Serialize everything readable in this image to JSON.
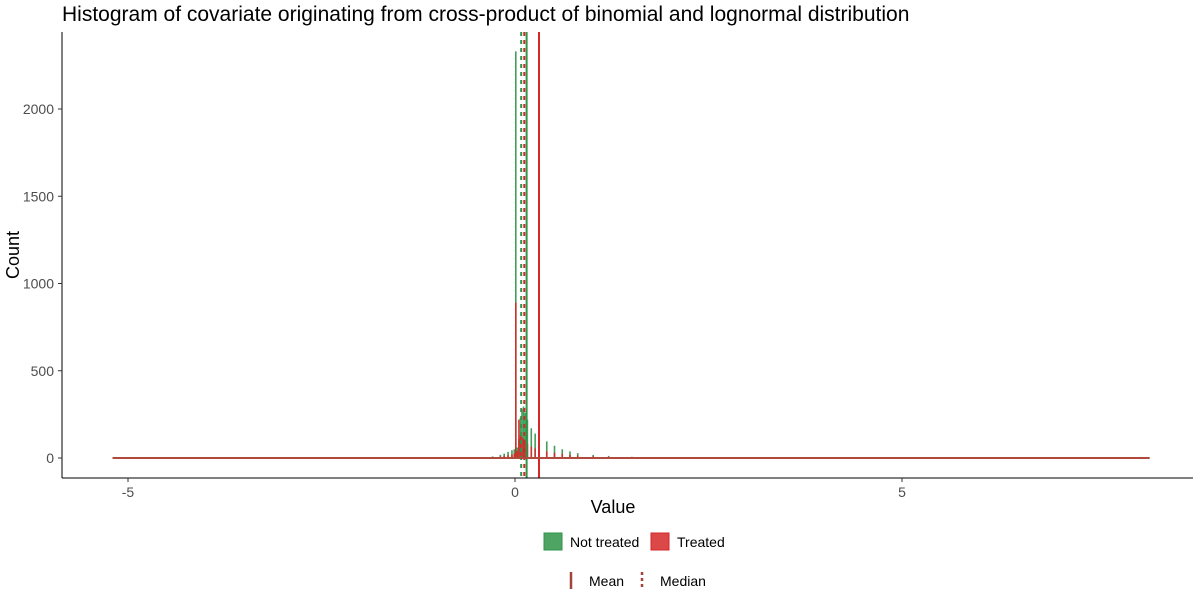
{
  "chart_data": {
    "type": "histogram",
    "title": "Histogram of covariate originating from cross-product of binomial and lognormal distribution",
    "xlabel": "Value",
    "ylabel": "Count",
    "xlim": [
      -5.2,
      8.2
    ],
    "ylim": [
      0,
      2400
    ],
    "x_ticks": [
      -5,
      0,
      5
    ],
    "y_ticks": [
      0,
      500,
      1000,
      1500,
      2000
    ],
    "grid": false,
    "legend_position": "bottom",
    "series": [
      {
        "name": "Not treated",
        "color": "#2e9448",
        "bins": [
          {
            "x": 0.0,
            "count": 2330
          },
          {
            "x": 0.02,
            "count": 60
          },
          {
            "x": 0.04,
            "count": 110
          },
          {
            "x": 0.06,
            "count": 230
          },
          {
            "x": 0.08,
            "count": 280
          },
          {
            "x": 0.1,
            "count": 295
          },
          {
            "x": 0.12,
            "count": 260
          },
          {
            "x": 0.15,
            "count": 220
          },
          {
            "x": 0.2,
            "count": 170
          },
          {
            "x": 0.25,
            "count": 140
          },
          {
            "x": 0.3,
            "count": 125
          },
          {
            "x": 0.4,
            "count": 95
          },
          {
            "x": 0.5,
            "count": 70
          },
          {
            "x": 0.6,
            "count": 50
          },
          {
            "x": 0.7,
            "count": 38
          },
          {
            "x": 0.8,
            "count": 28
          },
          {
            "x": 1.0,
            "count": 18
          },
          {
            "x": 1.2,
            "count": 12
          },
          {
            "x": 1.5,
            "count": 7
          },
          {
            "x": 2.0,
            "count": 3
          },
          {
            "x": 2.5,
            "count": 1
          },
          {
            "x": -0.02,
            "count": 50
          },
          {
            "x": -0.05,
            "count": 45
          },
          {
            "x": -0.1,
            "count": 35
          },
          {
            "x": -0.15,
            "count": 25
          },
          {
            "x": -0.2,
            "count": 18
          },
          {
            "x": -0.3,
            "count": 9
          },
          {
            "x": -0.4,
            "count": 4
          },
          {
            "x": -0.6,
            "count": 1
          }
        ],
        "mean": 0.15,
        "median": 0.08
      },
      {
        "name": "Treated",
        "color": "#d62728",
        "bins": [
          {
            "x": 0.0,
            "count": 890
          },
          {
            "x": 0.02,
            "count": 40
          },
          {
            "x": 0.04,
            "count": 220
          },
          {
            "x": 0.06,
            "count": 130
          },
          {
            "x": 0.08,
            "count": 120
          },
          {
            "x": 0.1,
            "count": 110
          },
          {
            "x": 0.12,
            "count": 95
          },
          {
            "x": 0.15,
            "count": 80
          },
          {
            "x": 0.2,
            "count": 65
          },
          {
            "x": 0.25,
            "count": 55
          },
          {
            "x": 0.3,
            "count": 48
          },
          {
            "x": 0.4,
            "count": 38
          },
          {
            "x": 0.5,
            "count": 30
          },
          {
            "x": 0.6,
            "count": 24
          },
          {
            "x": 0.7,
            "count": 18
          },
          {
            "x": 0.8,
            "count": 14
          },
          {
            "x": 1.0,
            "count": 10
          },
          {
            "x": 1.2,
            "count": 7
          },
          {
            "x": 1.5,
            "count": 4
          },
          {
            "x": 2.0,
            "count": 2
          },
          {
            "x": 2.5,
            "count": 1
          },
          {
            "x": -0.02,
            "count": 25
          },
          {
            "x": -0.05,
            "count": 20
          },
          {
            "x": -0.1,
            "count": 16
          },
          {
            "x": -0.15,
            "count": 12
          },
          {
            "x": -0.2,
            "count": 9
          },
          {
            "x": -0.3,
            "count": 5
          },
          {
            "x": -0.4,
            "count": 2
          }
        ],
        "mean": 0.31,
        "median": 0.12
      }
    ],
    "line_legend": [
      {
        "label": "Mean",
        "style": "solid"
      },
      {
        "label": "Median",
        "style": "dashed"
      }
    ],
    "line_legend_color": "#a0453a"
  }
}
